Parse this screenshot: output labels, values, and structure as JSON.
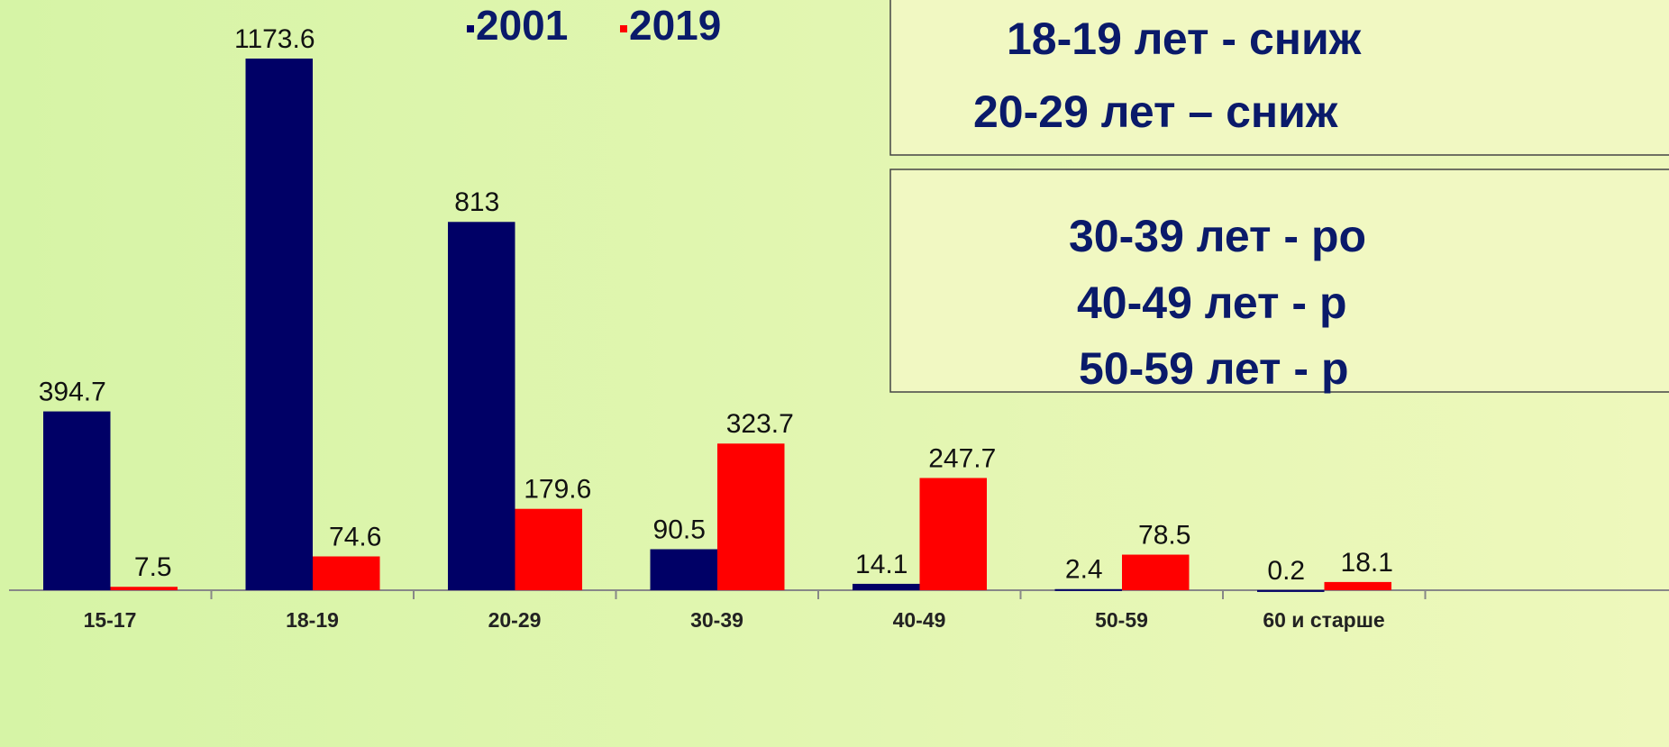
{
  "chart_data": {
    "type": "bar",
    "categories": [
      "15-17",
      "18-19",
      "20-29",
      "30-39",
      "40-49",
      "50-59",
      "60 и старше"
    ],
    "series": [
      {
        "name": "2001",
        "color": "#000066",
        "values": [
          394.7,
          1173.6,
          813,
          90.5,
          14.1,
          2.4,
          0.2
        ]
      },
      {
        "name": "2019",
        "color": "#ff0000",
        "values": [
          7.5,
          74.6,
          179.6,
          323.7,
          247.7,
          78.5,
          18.1
        ]
      }
    ],
    "annotations": [
      [
        "18-19 лет - сниж",
        "20-29 лет – сниж"
      ],
      [
        "30-39 лет - ро",
        "40-49 лет - р",
        "50-59 лет - р"
      ]
    ]
  }
}
